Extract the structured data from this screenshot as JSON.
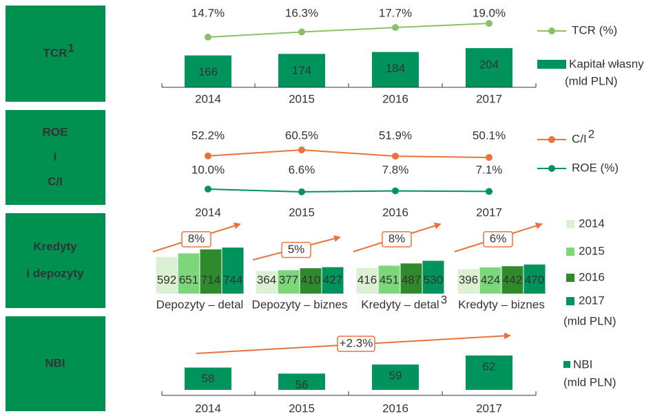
{
  "chart_data": [
    {
      "type": "bar_line",
      "row_label": [
        "TCR"
      ],
      "row_label_note": "1",
      "categories": [
        "2014",
        "2015",
        "2016",
        "2017"
      ],
      "series": [
        {
          "name": "TCR (%)",
          "type": "line",
          "color": "#8cc068",
          "values": [
            14.7,
            16.3,
            17.7,
            19.0
          ],
          "value_labels": [
            "14.7%",
            "16.3%",
            "17.7%",
            "19.0%"
          ]
        },
        {
          "name": "Kapitał własny",
          "unit": "(mld PLN)",
          "type": "bar",
          "color": "#00935b",
          "values": [
            166,
            174,
            184,
            204
          ]
        }
      ]
    },
    {
      "type": "line",
      "row_label": [
        "ROE",
        "i",
        "C/I"
      ],
      "categories": [
        "2014",
        "2015",
        "2016",
        "2017"
      ],
      "series": [
        {
          "name": "C/I",
          "note": "2",
          "color": "#e9733a",
          "values": [
            52.2,
            60.5,
            51.9,
            50.1
          ],
          "value_labels": [
            "52.2%",
            "60.5%",
            "51.9%",
            "50.1%"
          ]
        },
        {
          "name": "ROE (%)",
          "color": "#00935b",
          "values": [
            10.0,
            6.6,
            7.8,
            7.1
          ],
          "value_labels": [
            "10.0%",
            "6.6%",
            "7.8%",
            "7.1%"
          ]
        }
      ]
    },
    {
      "type": "grouped_bar",
      "row_label": [
        "Kredyty",
        "i depozyty"
      ],
      "categories": [
        "Depozyty – detal",
        "Depozyty – biznes",
        "Kredyty – detal",
        "Kredyty – biznes"
      ],
      "category_notes": [
        null,
        null,
        "3",
        null
      ],
      "annotations": [
        "8%",
        "5%",
        "8%",
        "6%"
      ],
      "unit": "(mld PLN)",
      "series": [
        {
          "name": "2014",
          "color": "#dcf1d4",
          "values": [
            592,
            364,
            416,
            396
          ]
        },
        {
          "name": "2015",
          "color": "#7cd77a",
          "values": [
            651,
            377,
            451,
            424
          ]
        },
        {
          "name": "2016",
          "color": "#2e8a2a",
          "values": [
            714,
            410,
            487,
            442
          ]
        },
        {
          "name": "2017",
          "color": "#00935b",
          "values": [
            744,
            427,
            530,
            470
          ]
        }
      ]
    },
    {
      "type": "bar",
      "row_label": [
        "NBI"
      ],
      "categories": [
        "2014",
        "2015",
        "2016",
        "2017"
      ],
      "annotation": "+2.3%",
      "series": [
        {
          "name": "NBI",
          "unit": "(mld PLN)",
          "color": "#00935b",
          "values": [
            58,
            56,
            59,
            62
          ]
        }
      ]
    }
  ]
}
